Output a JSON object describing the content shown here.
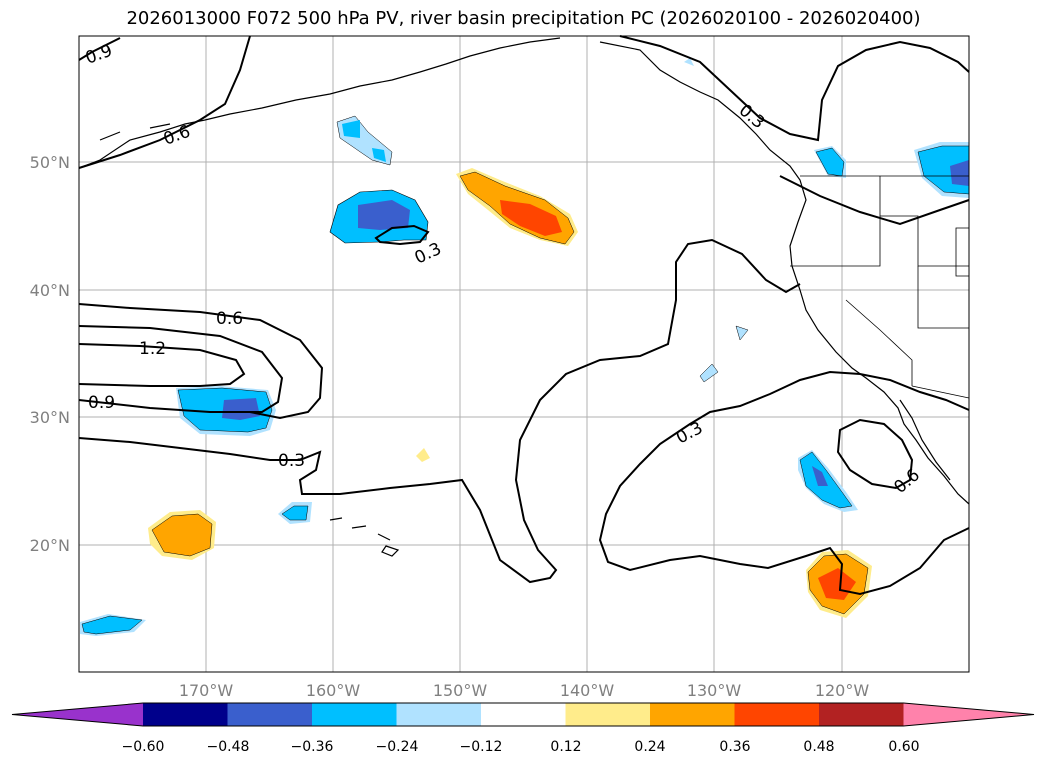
{
  "title": "2026013000 F072 500 hPa PV, river basin precipitation PC (2026020100 - 2026020400)",
  "map": {
    "lon_ticks": [
      "170°W",
      "160°W",
      "150°W",
      "140°W",
      "130°W",
      "120°W"
    ],
    "lat_ticks": [
      "50°N",
      "40°N",
      "30°N",
      "20°N"
    ],
    "contour_labels": [
      "0.9",
      "0.6",
      "0.3",
      "0.3",
      "0.6",
      "1.2",
      "0.9",
      "0.3",
      "0.3",
      "0.6"
    ]
  },
  "colorbar": {
    "ticks": [
      "−0.60",
      "−0.48",
      "−0.36",
      "−0.24",
      "−0.12",
      "0.12",
      "0.24",
      "0.36",
      "0.48",
      "0.60"
    ],
    "colors": [
      "#9932cc",
      "#00008b",
      "#3a5fcd",
      "#00bfff",
      "#b0e2ff",
      "#ffffff",
      "#ffec8b",
      "#ffa500",
      "#ff4500",
      "#b22222",
      "#ff82ab"
    ]
  }
}
